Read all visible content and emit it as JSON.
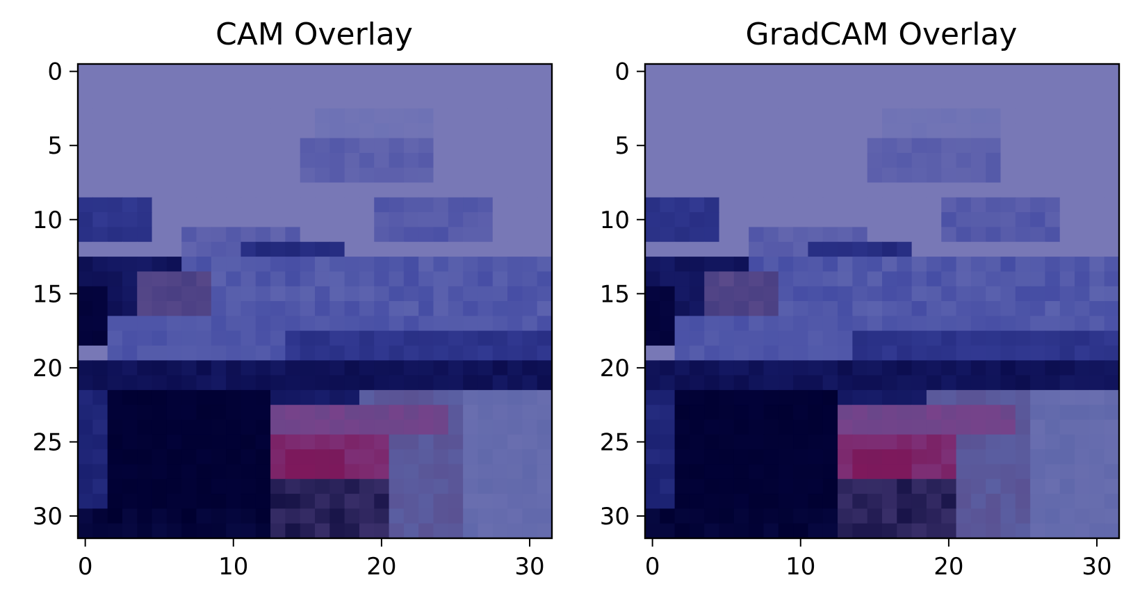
{
  "chart_data": [
    {
      "type": "heatmap",
      "title": "CAM Overlay",
      "xlabel": "",
      "ylabel": "",
      "xlim": [
        -0.5,
        31.5
      ],
      "ylim": [
        31.5,
        -0.5
      ],
      "x_ticks": [
        0,
        10,
        20,
        30
      ],
      "y_ticks": [
        0,
        5,
        10,
        15,
        20,
        25,
        30
      ],
      "grid": false,
      "image_size": [
        32,
        32
      ],
      "colors": {
        "base": "#7878b6",
        "sky_dark": "#6a70b4",
        "band_blue": "#3c44a0",
        "navy": "#1a2070",
        "deep": "#050540",
        "shadow": "#000030",
        "magenta": "#7a1a5c",
        "pink": "#80408a",
        "dusk": "#5a4a8a",
        "ground": "#5a64a8"
      }
    },
    {
      "type": "heatmap",
      "title": "GradCAM Overlay",
      "xlabel": "",
      "ylabel": "",
      "xlim": [
        -0.5,
        31.5
      ],
      "ylim": [
        31.5,
        -0.5
      ],
      "x_ticks": [
        0,
        10,
        20,
        30
      ],
      "y_ticks": [
        0,
        5,
        10,
        15,
        20,
        25,
        30
      ],
      "grid": false,
      "image_size": [
        32,
        32
      ],
      "colors": {
        "base": "#7878b6",
        "sky_dark": "#6a70b4",
        "band_blue": "#3c44a0",
        "navy": "#1a2070",
        "deep": "#050540",
        "shadow": "#000030",
        "magenta": "#7a1a5c",
        "pink": "#80408a",
        "dusk": "#5a4a8a",
        "ground": "#5a64a8"
      }
    }
  ]
}
